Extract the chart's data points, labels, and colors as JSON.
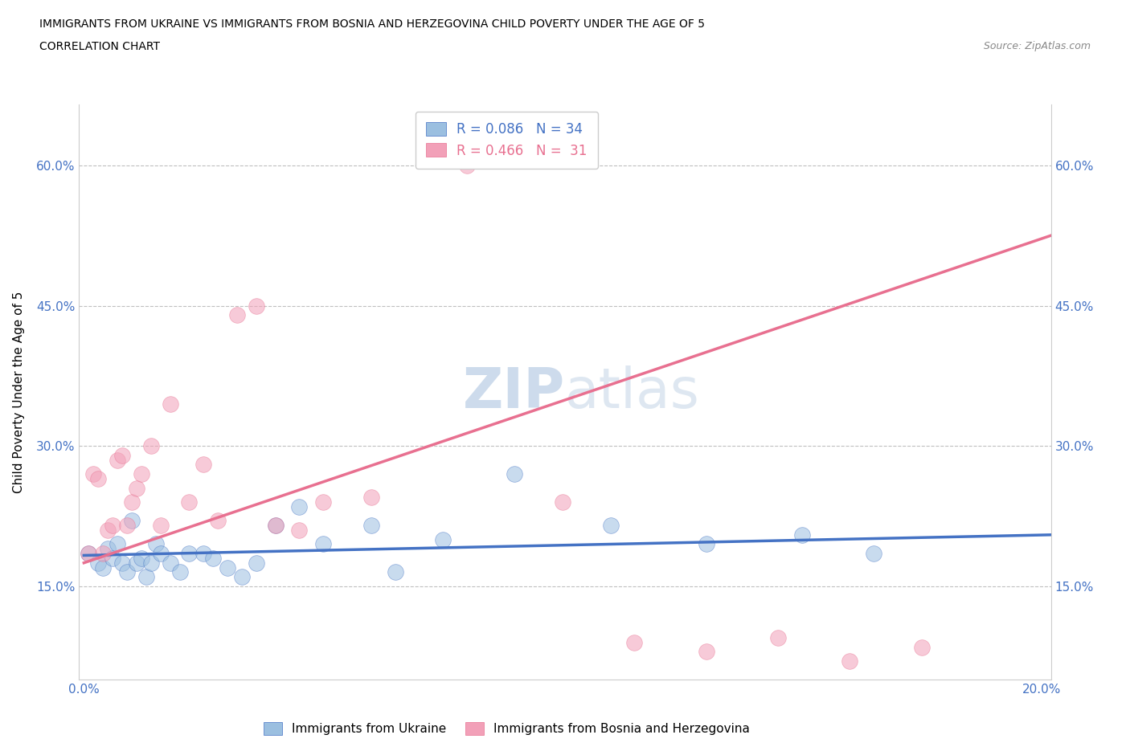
{
  "title_line1": "IMMIGRANTS FROM UKRAINE VS IMMIGRANTS FROM BOSNIA AND HERZEGOVINA CHILD POVERTY UNDER THE AGE OF 5",
  "title_line2": "CORRELATION CHART",
  "source": "Source: ZipAtlas.com",
  "ylabel": "Child Poverty Under the Age of 5",
  "xlim": [
    -0.001,
    0.202
  ],
  "ylim": [
    0.05,
    0.665
  ],
  "yticks": [
    0.15,
    0.3,
    0.45,
    0.6
  ],
  "ytick_labels": [
    "15.0%",
    "30.0%",
    "45.0%",
    "60.0%"
  ],
  "xticks": [
    0.0,
    0.04,
    0.08,
    0.12,
    0.16,
    0.2
  ],
  "xtick_labels": [
    "0.0%",
    "",
    "",
    "",
    "",
    "20.0%"
  ],
  "ukraine_color": "#9bbfe0",
  "bosnia_color": "#f2a0b8",
  "ukraine_line_color": "#4472c4",
  "bosnia_line_color": "#e87090",
  "axis_color": "#4472c4",
  "ukraine_scatter_x": [
    0.001,
    0.003,
    0.004,
    0.005,
    0.006,
    0.007,
    0.008,
    0.009,
    0.01,
    0.011,
    0.012,
    0.013,
    0.014,
    0.015,
    0.016,
    0.018,
    0.02,
    0.022,
    0.025,
    0.027,
    0.03,
    0.033,
    0.036,
    0.04,
    0.045,
    0.05,
    0.06,
    0.065,
    0.075,
    0.09,
    0.11,
    0.13,
    0.15,
    0.165
  ],
  "ukraine_scatter_y": [
    0.185,
    0.175,
    0.17,
    0.19,
    0.18,
    0.195,
    0.175,
    0.165,
    0.22,
    0.175,
    0.18,
    0.16,
    0.175,
    0.195,
    0.185,
    0.175,
    0.165,
    0.185,
    0.185,
    0.18,
    0.17,
    0.16,
    0.175,
    0.215,
    0.235,
    0.195,
    0.215,
    0.165,
    0.2,
    0.27,
    0.215,
    0.195,
    0.205,
    0.185
  ],
  "bosnia_scatter_x": [
    0.001,
    0.002,
    0.003,
    0.004,
    0.005,
    0.006,
    0.007,
    0.008,
    0.009,
    0.01,
    0.011,
    0.012,
    0.014,
    0.016,
    0.018,
    0.022,
    0.025,
    0.028,
    0.032,
    0.036,
    0.04,
    0.045,
    0.05,
    0.06,
    0.08,
    0.1,
    0.115,
    0.13,
    0.145,
    0.16,
    0.175
  ],
  "bosnia_scatter_y": [
    0.185,
    0.27,
    0.265,
    0.185,
    0.21,
    0.215,
    0.285,
    0.29,
    0.215,
    0.24,
    0.255,
    0.27,
    0.3,
    0.215,
    0.345,
    0.24,
    0.28,
    0.22,
    0.44,
    0.45,
    0.215,
    0.21,
    0.24,
    0.245,
    0.6,
    0.24,
    0.09,
    0.08,
    0.095,
    0.07,
    0.085
  ],
  "ukraine_trend_x": [
    0.0,
    0.202
  ],
  "ukraine_trend_y": [
    0.183,
    0.205
  ],
  "bosnia_trend_x": [
    0.0,
    0.202
  ],
  "bosnia_trend_y": [
    0.175,
    0.525
  ]
}
